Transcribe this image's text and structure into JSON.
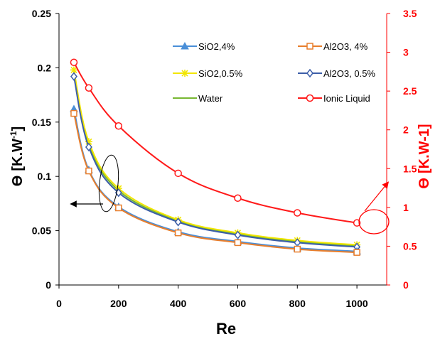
{
  "chart_data": {
    "type": "line",
    "xlabel": "Re",
    "ylabel_left_symbol": "ϴ",
    "ylabel_left_unit": "[K.W",
    "ylabel_left_sup": "-1",
    "ylabel_left_close": "]",
    "ylabel_right_symbol": "ϴ",
    "ylabel_right_unit": "[K.W-1]",
    "xlim": [
      0,
      1100
    ],
    "ylim_left": [
      0,
      0.25
    ],
    "ylim_right": [
      0,
      3.5
    ],
    "x_ticks": [
      "0",
      "200",
      "400",
      "600",
      "800",
      "1000"
    ],
    "y_left_ticks": [
      "0",
      "0.05",
      "0.1",
      "0.15",
      "0.2",
      "0.25"
    ],
    "y_right_ticks": [
      "0",
      "0.5",
      "1",
      "1.5",
      "2",
      "2.5",
      "3",
      "3.5"
    ],
    "x": [
      50,
      100,
      200,
      400,
      600,
      800,
      1000
    ],
    "series": [
      {
        "name": "SiO2,4%",
        "axis": "left",
        "color": "#4a8fd8",
        "marker": "triangle",
        "values": [
          0.162,
          0.106,
          0.072,
          0.049,
          0.04,
          0.034,
          0.031
        ]
      },
      {
        "name": "Al2O3, 4%",
        "axis": "left",
        "color": "#e87e2c",
        "marker": "square",
        "values": [
          0.158,
          0.105,
          0.071,
          0.048,
          0.039,
          0.033,
          0.03
        ]
      },
      {
        "name": "SiO2,0.5%",
        "axis": "left",
        "color": "#f2e600",
        "marker": "star",
        "values": [
          0.198,
          0.132,
          0.089,
          0.06,
          0.048,
          0.041,
          0.037
        ]
      },
      {
        "name": "Al2O3, 0.5%",
        "axis": "left",
        "color": "#3c5ea8",
        "marker": "diamond",
        "values": [
          0.192,
          0.127,
          0.085,
          0.058,
          0.046,
          0.039,
          0.035
        ]
      },
      {
        "name": "Water",
        "axis": "left",
        "color": "#78b832",
        "marker": "none",
        "values": [
          0.195,
          0.13,
          0.087,
          0.059,
          0.047,
          0.04,
          0.036
        ]
      },
      {
        "name": "Ionic Liquid",
        "axis": "right",
        "color": "#ff1a1a",
        "marker": "circle",
        "values": [
          2.87,
          2.54,
          2.05,
          1.44,
          1.12,
          0.93,
          0.8
        ]
      }
    ],
    "grid": false,
    "legend_position": "top-right",
    "annotations": [
      {
        "type": "ellipse-arrow",
        "target_axis": "left",
        "direction": "left"
      },
      {
        "type": "ellipse-arrow",
        "target_axis": "right",
        "direction": "right"
      }
    ]
  }
}
